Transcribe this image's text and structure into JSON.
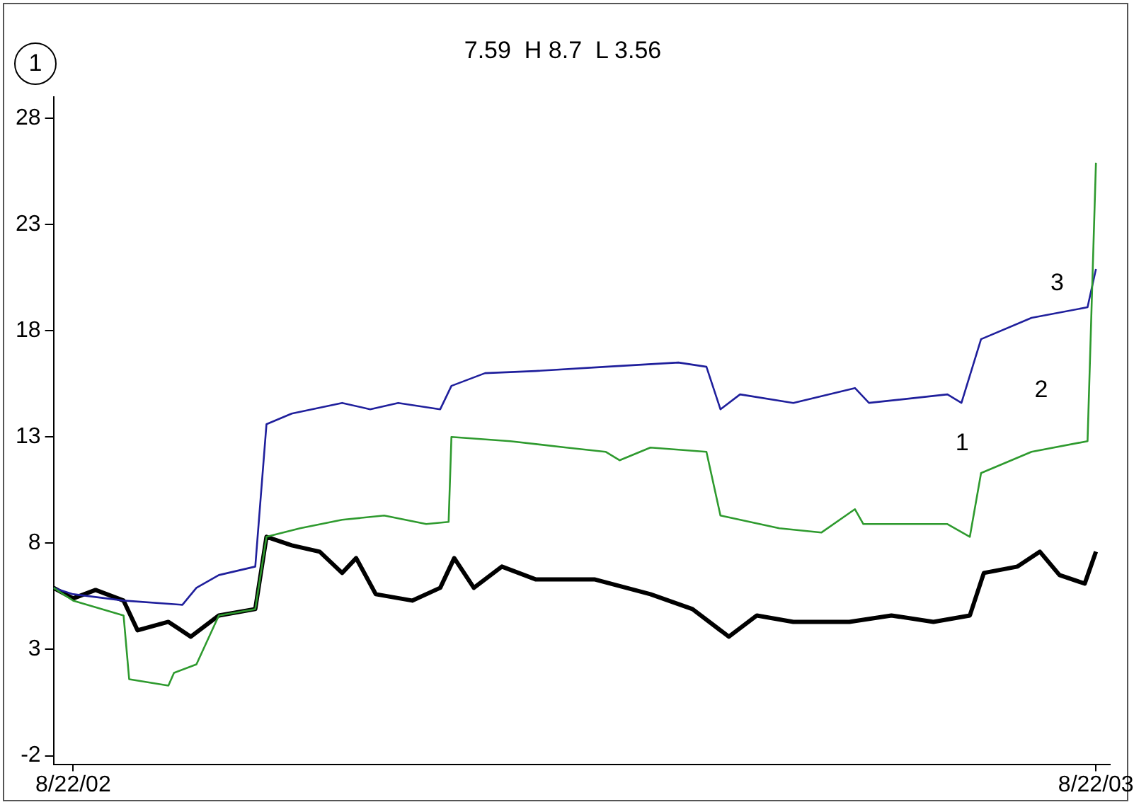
{
  "chart_data": {
    "type": "line",
    "title": "7.59  H 8.7  L 3.56",
    "annotations": [
      "1",
      "1",
      "2",
      "3"
    ],
    "xlim": [
      "2002-08-15",
      "2003-08-27"
    ],
    "xticks": [
      {
        "value": "2002-08-22",
        "label": "8/22/02"
      },
      {
        "value": "2003-08-22",
        "label": "8/22/03"
      }
    ],
    "ylim": [
      -2.4,
      29
    ],
    "yticks": [
      -2,
      3,
      8,
      13,
      18,
      23,
      28
    ],
    "grid": false,
    "legend": false,
    "marker": "none",
    "line_style": "solid",
    "series": [
      {
        "color": "#2e9a2e",
        "x": [
          "2002-08-15",
          "2002-08-22",
          "2002-09-09",
          "2002-09-11",
          "2002-09-25",
          "2002-09-27",
          "2002-10-05",
          "2002-10-13",
          "2002-10-26",
          "2002-10-30",
          "2002-11-11",
          "2002-11-26",
          "2002-12-11",
          "2002-12-26",
          "2003-01-03",
          "2003-01-04",
          "2003-01-25",
          "2003-02-14",
          "2003-02-28",
          "2003-03-05",
          "2003-03-16",
          "2003-04-05",
          "2003-04-10",
          "2003-05-01",
          "2003-05-16",
          "2003-05-28",
          "2003-05-31",
          "2003-06-30",
          "2003-07-08",
          "2003-07-12",
          "2003-07-30",
          "2003-08-19",
          "2003-08-22"
        ],
        "values": [
          5.9,
          5.3,
          4.6,
          1.6,
          1.3,
          1.9,
          2.3,
          4.6,
          4.9,
          8.3,
          8.7,
          9.1,
          9.3,
          8.9,
          9.0,
          13.0,
          12.8,
          12.5,
          12.3,
          11.9,
          12.5,
          12.3,
          9.3,
          8.7,
          8.5,
          9.6,
          8.9,
          8.9,
          8.3,
          11.3,
          12.3,
          12.8,
          25.9
        ]
      },
      {
        "color": "#1f1f9c",
        "x": [
          "2002-08-15",
          "2002-08-22",
          "2002-09-09",
          "2002-09-30",
          "2002-10-05",
          "2002-10-13",
          "2002-10-26",
          "2002-10-30",
          "2002-11-08",
          "2002-11-26",
          "2002-12-06",
          "2002-12-16",
          "2002-12-31",
          "2003-01-04",
          "2003-01-16",
          "2003-02-03",
          "2003-02-28",
          "2003-03-26",
          "2003-04-05",
          "2003-04-10",
          "2003-04-17",
          "2003-05-06",
          "2003-05-28",
          "2003-06-02",
          "2003-06-30",
          "2003-07-05",
          "2003-07-12",
          "2003-07-30",
          "2003-08-19",
          "2003-08-22"
        ],
        "values": [
          5.9,
          5.6,
          5.3,
          5.1,
          5.9,
          6.5,
          6.9,
          13.6,
          14.1,
          14.6,
          14.3,
          14.6,
          14.3,
          15.4,
          16.0,
          16.1,
          16.3,
          16.5,
          16.3,
          14.3,
          15.0,
          14.6,
          15.3,
          14.6,
          15.0,
          14.6,
          17.6,
          18.6,
          19.1,
          20.9
        ]
      },
      {
        "color": "#000000",
        "x": [
          "2002-08-15",
          "2002-08-22",
          "2002-08-30",
          "2002-09-09",
          "2002-09-14",
          "2002-09-25",
          "2002-10-03",
          "2002-10-13",
          "2002-10-26",
          "2002-10-30",
          "2002-11-08",
          "2002-11-18",
          "2002-11-26",
          "2002-12-01",
          "2002-12-08",
          "2002-12-21",
          "2002-12-31",
          "2003-01-05",
          "2003-01-12",
          "2003-01-22",
          "2003-02-03",
          "2003-02-24",
          "2003-03-16",
          "2003-03-31",
          "2003-04-13",
          "2003-04-23",
          "2003-05-06",
          "2003-05-26",
          "2003-06-10",
          "2003-06-25",
          "2003-07-08",
          "2003-07-13",
          "2003-07-25",
          "2003-08-02",
          "2003-08-09",
          "2003-08-18",
          "2003-08-22"
        ],
        "values": [
          5.9,
          5.4,
          5.8,
          5.3,
          3.9,
          4.3,
          3.6,
          4.6,
          4.9,
          8.3,
          7.9,
          7.6,
          6.6,
          7.3,
          5.6,
          5.3,
          5.9,
          7.3,
          5.9,
          6.9,
          6.3,
          6.3,
          5.6,
          4.9,
          3.6,
          4.6,
          4.3,
          4.3,
          4.6,
          4.3,
          4.6,
          6.6,
          6.9,
          7.6,
          6.5,
          6.1,
          7.6
        ]
      }
    ]
  }
}
